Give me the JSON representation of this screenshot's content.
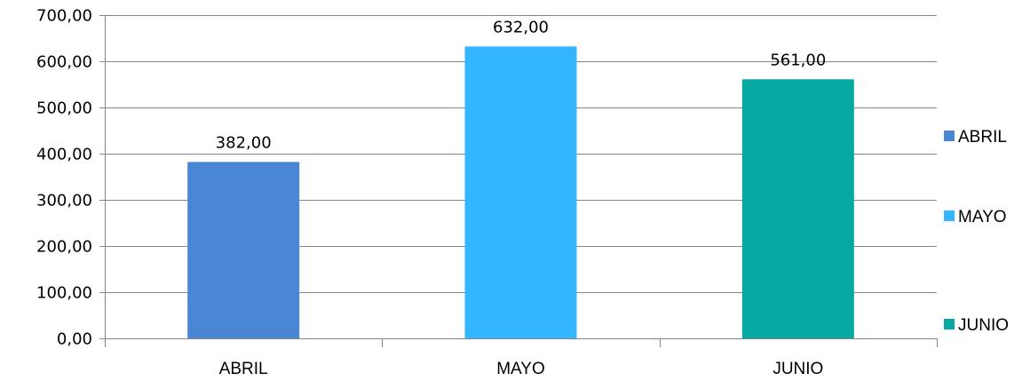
{
  "chart_data": {
    "type": "bar",
    "title": "",
    "xlabel": "",
    "ylabel": "",
    "categories": [
      "ABRIL",
      "MAYO",
      "JUNIO"
    ],
    "values": [
      382,
      632,
      561
    ],
    "data_labels": [
      "382,00",
      "632,00",
      "561,00"
    ],
    "colors": [
      "#4a86d6",
      "#33b5ff",
      "#06a9a2"
    ],
    "ylim": [
      0,
      700
    ],
    "yticks": [
      0,
      100,
      200,
      300,
      400,
      500,
      600,
      700
    ],
    "ytick_labels": [
      "0,00",
      "100,00",
      "200,00",
      "300,00",
      "400,00",
      "500,00",
      "600,00",
      "700,00"
    ],
    "grid": true,
    "legend": {
      "placement": "right",
      "entries": [
        "ABRIL",
        "MAYO",
        "JUNIO"
      ]
    }
  }
}
